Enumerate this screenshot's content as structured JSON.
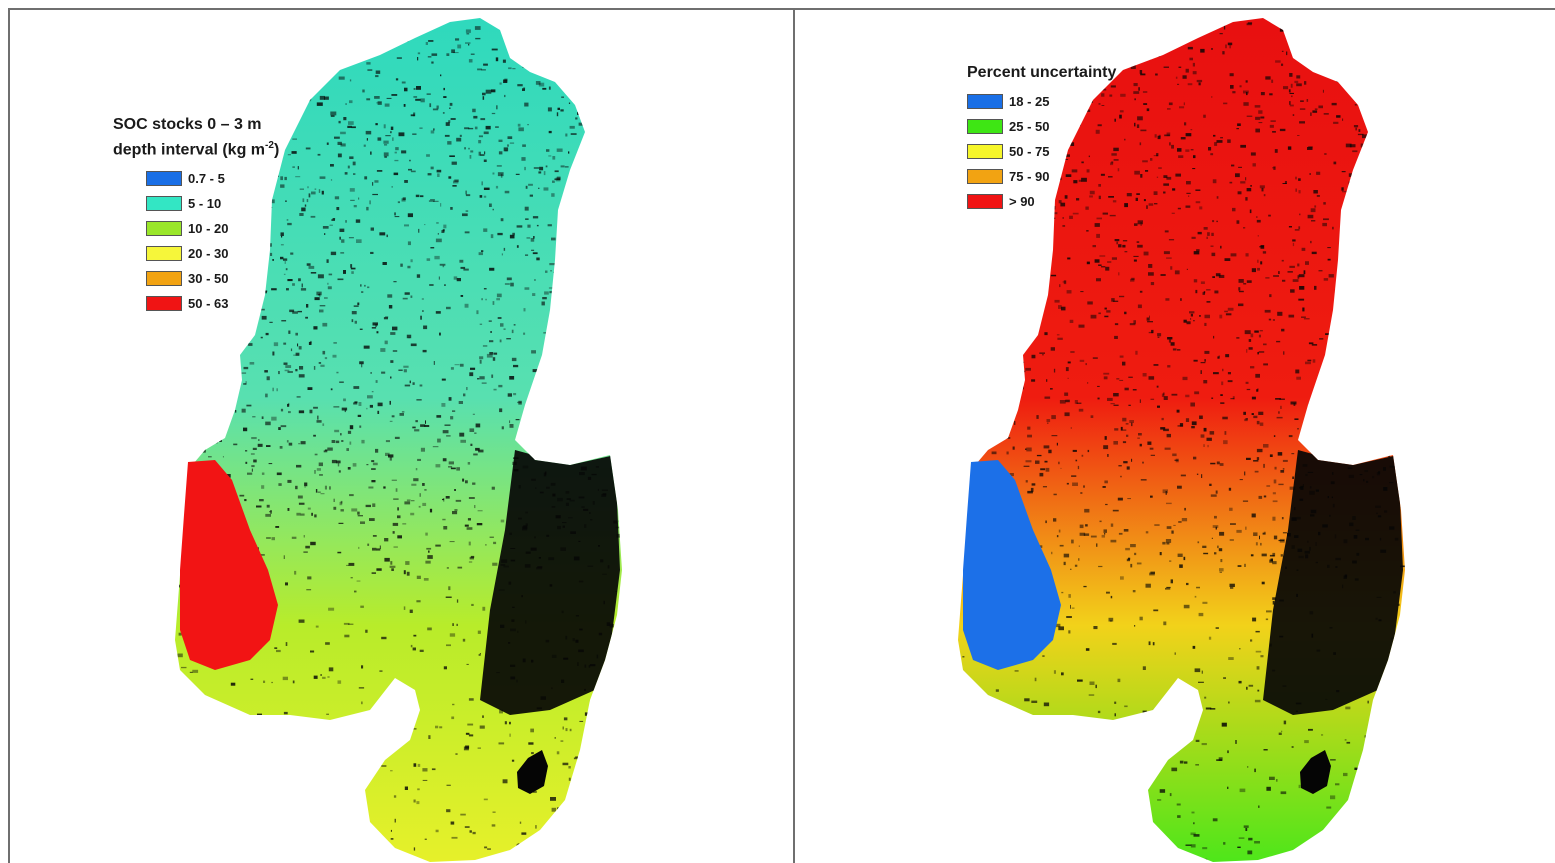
{
  "maps": {
    "left": {
      "legend": {
        "title_line1": "SOC stocks 0 – 3 m",
        "title_line2_prefix": "depth interval  (kg m",
        "title_line2_sup": "-2",
        "title_line2_suffix": ")",
        "items": [
          {
            "label": "0.7 - 5",
            "color": "#1a6fe6"
          },
          {
            "label": "5 - 10",
            "color": "#33e6c4"
          },
          {
            "label": "10 - 20",
            "color": "#9ae62a"
          },
          {
            "label": "20 - 30",
            "color": "#f6f63a"
          },
          {
            "label": "30 - 50",
            "color": "#f2a312"
          },
          {
            "label": "50 - 63",
            "color": "#f01414"
          }
        ]
      },
      "palette": {
        "north": "#2fd9bd",
        "mid": "#58e0b0",
        "south": "#b8ec2a",
        "tip": "#e6f02a",
        "west": "#f21414",
        "dark": "#050505"
      }
    },
    "right": {
      "legend": {
        "title": "Percent uncertainty",
        "items": [
          {
            "label": "18 - 25",
            "color": "#1a6fe6"
          },
          {
            "label": "25 - 50",
            "color": "#3ee614"
          },
          {
            "label": "50 - 75",
            "color": "#f6f62a"
          },
          {
            "label": "75 - 90",
            "color": "#f2a312"
          },
          {
            "label": "> 90",
            "color": "#f01414"
          }
        ]
      },
      "palette": {
        "north": "#e81010",
        "mid": "#ef1c10",
        "south": "#f2d21a",
        "tip": "#4ee61a",
        "west": "#1c70e8",
        "dark": "#050505"
      }
    }
  }
}
